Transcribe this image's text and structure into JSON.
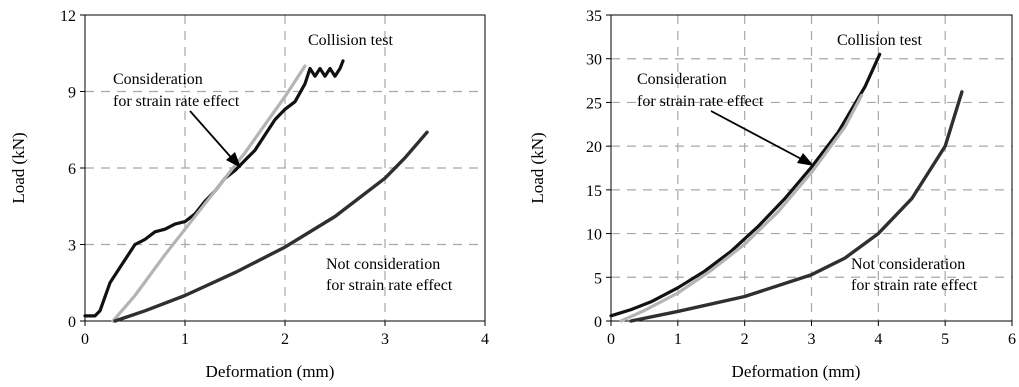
{
  "chart_data": [
    {
      "type": "line",
      "xlabel": "Deformation (mm)",
      "ylabel": "Load (kN)",
      "xlim": [
        0,
        4
      ],
      "ylim": [
        0,
        12
      ],
      "xticks": [
        0,
        1,
        2,
        3,
        4
      ],
      "yticks": [
        0,
        3,
        6,
        9,
        12
      ],
      "grid": true,
      "series": [
        {
          "color": "#111111",
          "width": 3.2,
          "x": [
            0,
            0.1,
            0.15,
            0.25,
            0.35,
            0.45,
            0.5,
            0.6,
            0.7,
            0.8,
            0.9,
            1.0,
            1.1,
            1.2,
            1.3,
            1.4,
            1.5,
            1.6,
            1.7,
            1.8,
            1.9,
            2.0,
            2.1,
            2.2,
            2.25,
            2.3,
            2.35,
            2.4,
            2.45,
            2.5,
            2.55,
            2.58
          ],
          "y": [
            0.2,
            0.2,
            0.4,
            1.5,
            2.1,
            2.7,
            3.0,
            3.2,
            3.5,
            3.6,
            3.8,
            3.9,
            4.2,
            4.7,
            5.1,
            5.6,
            5.9,
            6.3,
            6.7,
            7.3,
            7.9,
            8.3,
            8.6,
            9.3,
            9.9,
            9.6,
            9.9,
            9.6,
            9.9,
            9.6,
            9.9,
            10.2
          ]
        },
        {
          "color": "#b4b4b4",
          "width": 3.2,
          "x": [
            0.28,
            0.5,
            0.8,
            1.0,
            1.2,
            1.4,
            1.6,
            1.8,
            2.0,
            2.2
          ],
          "y": [
            0,
            1.0,
            2.6,
            3.6,
            4.6,
            5.6,
            6.6,
            7.7,
            8.8,
            10.0
          ]
        },
        {
          "color": "#2f2f2f",
          "width": 3.4,
          "x": [
            0.3,
            0.6,
            1.0,
            1.5,
            2.0,
            2.5,
            3.0,
            3.2,
            3.42
          ],
          "y": [
            0,
            0.4,
            1.0,
            1.9,
            2.9,
            4.1,
            5.6,
            6.4,
            7.4
          ]
        }
      ],
      "annotations": {
        "collision_lines": [
          "Collision test"
        ],
        "strain_lines": [
          "Consideration",
          "for strain rate effect"
        ],
        "not_lines": [
          "Not consideration",
          "for strain rate effect"
        ]
      }
    },
    {
      "type": "line",
      "xlabel": "Deformation (mm)",
      "ylabel": "Load (kN)",
      "xlim": [
        0,
        6
      ],
      "ylim": [
        0,
        35
      ],
      "xticks": [
        0,
        1,
        2,
        3,
        4,
        5,
        6
      ],
      "yticks": [
        0,
        5,
        10,
        15,
        20,
        25,
        30,
        35
      ],
      "grid": true,
      "series": [
        {
          "color": "#111111",
          "width": 3.2,
          "x": [
            0,
            0.3,
            0.6,
            1.0,
            1.4,
            1.8,
            2.2,
            2.6,
            3.0,
            3.4,
            3.8,
            4.02
          ],
          "y": [
            0.6,
            1.3,
            2.2,
            3.8,
            5.7,
            8.0,
            10.8,
            14.0,
            17.6,
            21.6,
            26.8,
            30.5
          ]
        },
        {
          "color": "#b4b4b4",
          "width": 3.2,
          "x": [
            0.15,
            0.5,
            1.0,
            1.5,
            2.0,
            2.5,
            3.0,
            3.5,
            3.75
          ],
          "y": [
            0,
            1.2,
            3.2,
            5.8,
            8.8,
            12.5,
            17.0,
            22.2,
            25.8
          ]
        },
        {
          "color": "#2f2f2f",
          "width": 3.4,
          "x": [
            0.3,
            1.0,
            2.0,
            3.0,
            3.5,
            4.0,
            4.5,
            5.0,
            5.25
          ],
          "y": [
            0,
            1.1,
            2.8,
            5.3,
            7.2,
            10.0,
            14.0,
            20.0,
            26.2
          ]
        }
      ],
      "annotations": {
        "collision_lines": [
          "Collision test"
        ],
        "strain_lines": [
          "Consideration",
          "for strain rate effect"
        ],
        "not_lines": [
          "Not consideration",
          "for strain rate effect"
        ]
      }
    }
  ]
}
